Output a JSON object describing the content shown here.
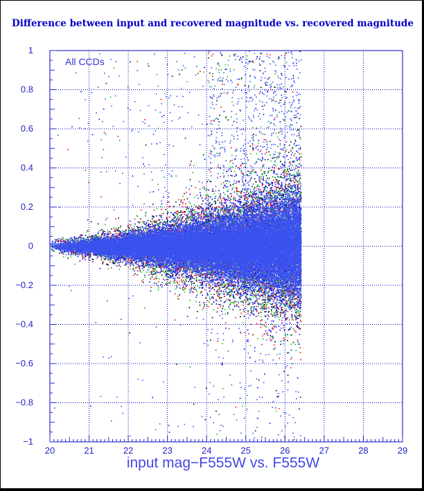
{
  "chart_data": {
    "type": "scatter",
    "title": "Difference between input and recovered magnitude vs. recovered magnitude",
    "xlabel": "input mag−F555W vs. F555W",
    "ylabel": "",
    "annotation": "All CCDs",
    "xlim": [
      20,
      29
    ],
    "ylim": [
      -1,
      1
    ],
    "x_ticks": [
      20,
      21,
      22,
      23,
      24,
      25,
      26,
      27,
      28,
      29
    ],
    "y_ticks": [
      -1,
      -0.8,
      -0.6,
      -0.4,
      -0.2,
      0,
      0.2,
      0.4,
      0.6,
      0.8,
      1
    ],
    "x_tick_labels": [
      "20",
      "21",
      "22",
      "23",
      "24",
      "25",
      "26",
      "27",
      "28",
      "29"
    ],
    "y_tick_labels": [
      "−1",
      "−0.8",
      "−0.6",
      "−0.4",
      "−0.2",
      "0",
      "0.2",
      "0.4",
      "0.6",
      "0.8",
      "1"
    ],
    "grid": true,
    "series": [
      {
        "color": "#000000",
        "approx_points": 3500,
        "x_range": [
          20,
          26.4
        ],
        "y_center": 0,
        "spread_at_x20": 0.02,
        "spread_at_x26": 0.2
      },
      {
        "color": "#00cc00",
        "approx_points": 3000,
        "x_range": [
          20,
          26.4
        ],
        "y_center": 0,
        "spread_at_x20": 0.02,
        "spread_at_x26": 0.2
      },
      {
        "color": "#ff0000",
        "approx_points": 3000,
        "x_range": [
          20,
          26.4
        ],
        "y_center": 0,
        "spread_at_x20": 0.02,
        "spread_at_x26": 0.2
      },
      {
        "color": "#0000ff",
        "approx_points": 3500,
        "x_range": [
          20,
          26.4
        ],
        "y_center": 0,
        "spread_at_x20": 0.02,
        "spread_at_x26": 0.2
      },
      {
        "color": "#3b52f0",
        "approx_points": 30000,
        "x_range": [
          20,
          26.4
        ],
        "y_center": 0,
        "spread_at_x20": 0.012,
        "spread_at_x26": 0.12
      }
    ],
    "axis_color": "#2828c8",
    "grid_color": "#0000c0"
  }
}
